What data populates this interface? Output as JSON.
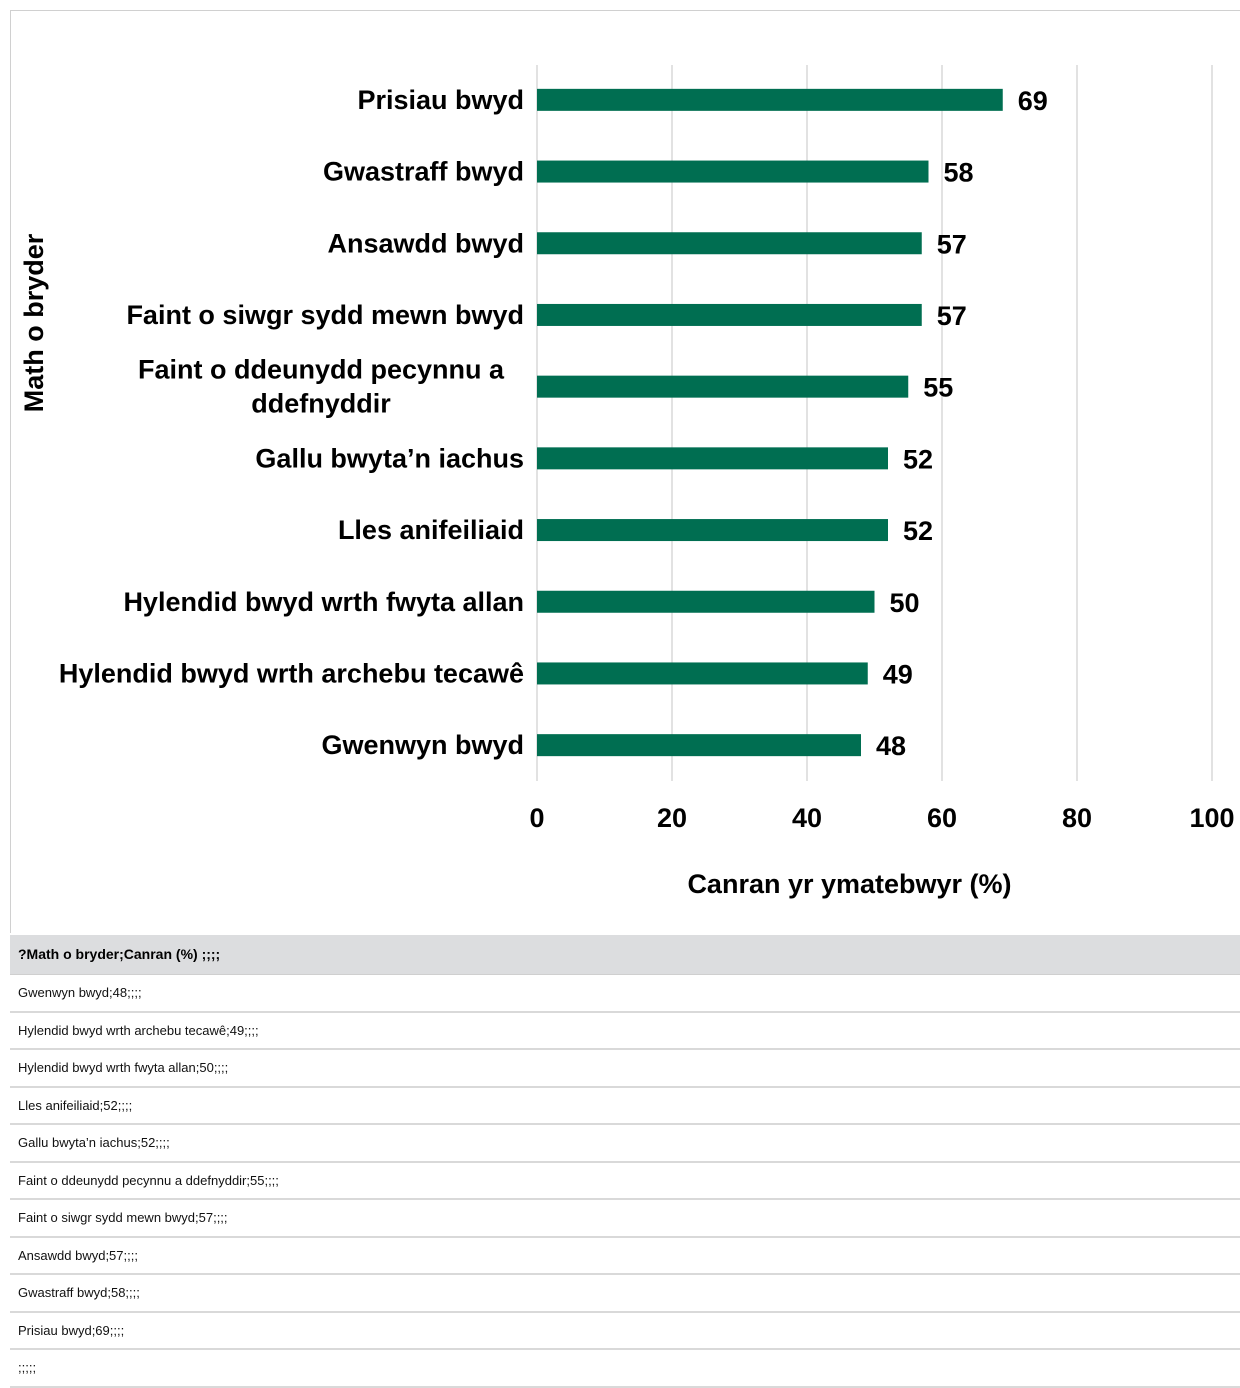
{
  "chart_data": {
    "type": "bar",
    "orientation": "horizontal",
    "categories": [
      "Prisiau bwyd",
      "Gwastraff bwyd",
      "Ansawdd bwyd",
      "Faint o siwgr sydd mewn bwyd",
      "Faint o ddeunydd pecynnu a ddefnyddir",
      "Gallu bwyta’n iachus",
      "Lles anifeiliaid",
      "Hylendid bwyd wrth fwyta allan",
      "Hylendid bwyd wrth archebu tecawê",
      "Gwenwyn bwyd"
    ],
    "category_label_lines": [
      [
        "Prisiau bwyd"
      ],
      [
        "Gwastraff bwyd"
      ],
      [
        "Ansawdd bwyd"
      ],
      [
        "Faint o siwgr sydd mewn bwyd"
      ],
      [
        "Faint o ddeunydd pecynnu a",
        "ddefnyddir"
      ],
      [
        "Gallu bwyta’n iachus"
      ],
      [
        "Lles anifeiliaid"
      ],
      [
        "Hylendid bwyd wrth fwyta allan"
      ],
      [
        "Hylendid bwyd wrth archebu tecawê"
      ],
      [
        "Gwenwyn bwyd"
      ]
    ],
    "values": [
      69,
      58,
      57,
      57,
      55,
      52,
      52,
      50,
      49,
      48
    ],
    "data_labels": [
      "69",
      "58",
      "57",
      "57",
      "55",
      "52",
      "52",
      "50",
      "49",
      "48"
    ],
    "title": "",
    "xlabel": "Canran yr ymatebwyr (%)",
    "ylabel": "Math o bryder",
    "xlim": [
      0,
      100
    ],
    "xticks": [
      "0",
      "20",
      "40",
      "60",
      "80",
      "100"
    ],
    "tick_values": [
      0,
      20,
      40,
      60,
      80,
      100
    ],
    "grid": "vertical",
    "legend": "none",
    "bar_color": "#006e51",
    "grid_color": "#d9d9d9"
  },
  "table": {
    "header": "?Math o bryder;Canran (%) ;;;;",
    "rows": [
      "Gwenwyn bwyd;48;;;;",
      "Hylendid bwyd wrth archebu tecawê;49;;;;",
      "Hylendid bwyd wrth fwyta allan;50;;;;",
      "Lles anifeiliaid;52;;;;",
      "Gallu bwyta’n iachus;52;;;;",
      "Faint o ddeunydd pecynnu a ddefnyddir;55;;;;",
      "Faint o siwgr sydd mewn bwyd;57;;;;",
      "Ansawdd bwyd;57;;;;",
      "Gwastraff bwyd;58;;;;",
      "Prisiau bwyd;69;;;;",
      ";;;;;"
    ]
  }
}
